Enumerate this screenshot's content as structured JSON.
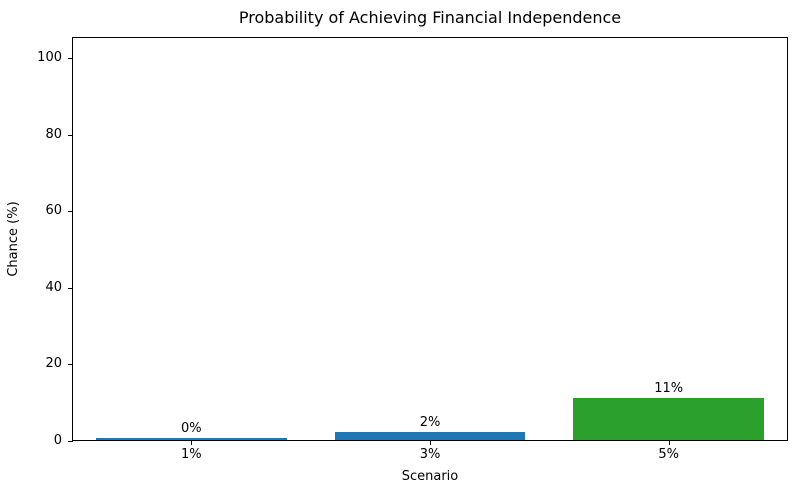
{
  "chart_data": {
    "type": "bar",
    "title": "Probability of Achieving Financial Independence",
    "xlabel": "Scenario",
    "ylabel": "Chance (%)",
    "categories": [
      "1%",
      "3%",
      "5%"
    ],
    "values": [
      0.5,
      2,
      11
    ],
    "bar_labels": [
      "0%",
      "2%",
      "11%"
    ],
    "bar_colors": [
      "#1f77b4",
      "#1f77b4",
      "#2ca02c"
    ],
    "yticks": [
      0,
      20,
      40,
      60,
      80,
      100
    ],
    "ylim": [
      0,
      105.5
    ],
    "grid": false,
    "legend_position": "none",
    "background_color": "#ffffff",
    "text_color": "#000000",
    "axis_color": "#000000"
  }
}
